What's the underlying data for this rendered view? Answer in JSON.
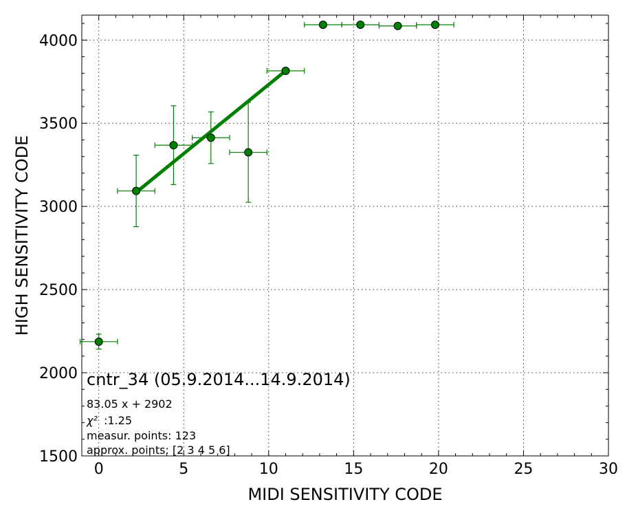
{
  "chart_data": {
    "type": "scatter",
    "xlabel": "MIDI SENSITIVITY CODE",
    "ylabel": "HIGH SENSITIVITY CODE",
    "xlim": [
      -1,
      30
    ],
    "ylim": [
      1500,
      4150
    ],
    "xticks": [
      0,
      5,
      10,
      15,
      20,
      25,
      30
    ],
    "yticks": [
      1500,
      2000,
      2500,
      3000,
      3500,
      4000
    ],
    "grid": true,
    "colors": {
      "series": "#008000",
      "marker_edge": "#000000"
    },
    "series": [
      {
        "points": [
          {
            "x": 0.0,
            "y": 2187,
            "xerr": 1.1,
            "yerr": 45
          },
          {
            "x": 2.2,
            "y": 3093,
            "xerr": 1.1,
            "yerr": 215
          },
          {
            "x": 4.4,
            "y": 3368,
            "xerr": 1.1,
            "yerr": 237
          },
          {
            "x": 6.6,
            "y": 3413,
            "xerr": 1.1,
            "yerr": 155
          },
          {
            "x": 8.8,
            "y": 3325,
            "xerr": 1.1,
            "yerr": 300
          },
          {
            "x": 11.0,
            "y": 3815,
            "xerr": 1.1,
            "yerr": 0
          },
          {
            "x": 13.2,
            "y": 4092,
            "xerr": 1.1,
            "yerr": 0
          },
          {
            "x": 15.4,
            "y": 4092,
            "xerr": 1.1,
            "yerr": 0
          },
          {
            "x": 17.6,
            "y": 4085,
            "xerr": 1.1,
            "yerr": 0
          },
          {
            "x": 19.8,
            "y": 4092,
            "xerr": 1.1,
            "yerr": 0
          }
        ]
      }
    ],
    "fit": {
      "slope": 83.05,
      "intercept": 2902,
      "x_range": [
        2.2,
        11.0
      ]
    },
    "annotation": {
      "title": "cntr_34 (05.9.2014...14.9.2014)",
      "equation": "83.05 x + 2902",
      "chi2_label": "χ²",
      "chi2_value": ":1.25",
      "measur_points": "measur. points: 123",
      "approx_points": "approx. points: [2 3 4 5 6]"
    }
  }
}
